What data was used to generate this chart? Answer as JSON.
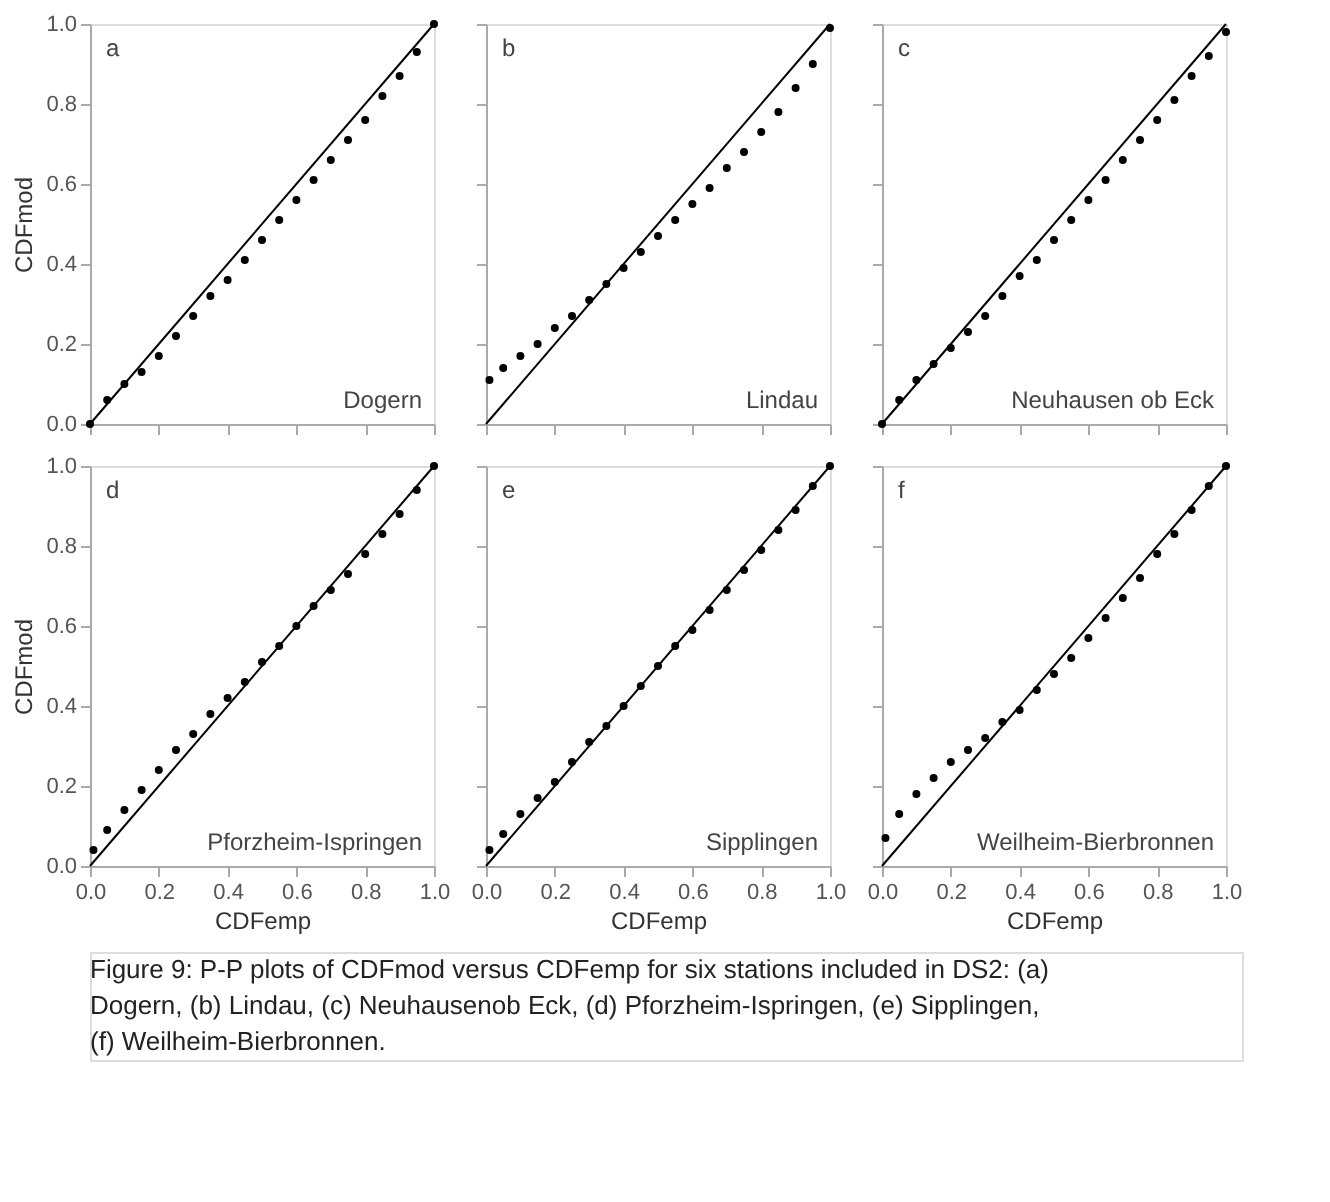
{
  "chart_data": [
    {
      "type": "scatter",
      "ylabel": "CDFmod",
      "tick_labels": "y",
      "annotations": [
        "a",
        "Dogern"
      ],
      "xlim": [
        0,
        1
      ],
      "ylim": [
        0,
        1
      ],
      "xticks": [
        0,
        0.2,
        0.4,
        0.6,
        0.8,
        1
      ],
      "yticks": [
        {
          "value": 0,
          "label": "0.0"
        },
        {
          "value": 0.2,
          "label": "0.2"
        },
        {
          "value": 0.4,
          "label": "0.4"
        },
        {
          "value": 0.6,
          "label": "0.6"
        },
        {
          "value": 0.8,
          "label": "0.8"
        },
        {
          "value": 1,
          "label": "1.0"
        }
      ],
      "grid": false,
      "series": [
        {
          "type": "scatter",
          "marker": "circle",
          "color": "#000000",
          "x": [
            0,
            0.05,
            0.1,
            0.15,
            0.2,
            0.25,
            0.3,
            0.35,
            0.4,
            0.45,
            0.5,
            0.55,
            0.6,
            0.65,
            0.7,
            0.75,
            0.8,
            0.85,
            0.9,
            0.95,
            1
          ],
          "values": [
            0,
            0.06,
            0.1,
            0.13,
            0.17,
            0.22,
            0.27,
            0.32,
            0.36,
            0.41,
            0.46,
            0.51,
            0.56,
            0.61,
            0.66,
            0.71,
            0.76,
            0.82,
            0.87,
            0.93,
            1
          ]
        },
        {
          "type": "line",
          "line_style": "solid",
          "color": "#000000",
          "x": [
            0,
            1
          ],
          "values": [
            0,
            1
          ]
        }
      ]
    },
    {
      "type": "scatter",
      "tick_labels": false,
      "annotations": [
        "b",
        "Lindau"
      ],
      "xlim": [
        0,
        1
      ],
      "ylim": [
        0,
        1
      ],
      "xticks": [
        0,
        0.2,
        0.4,
        0.6,
        0.8,
        1
      ],
      "yticks": [
        0,
        0.2,
        0.4,
        0.6,
        0.8,
        1
      ],
      "grid": false,
      "series": [
        {
          "type": "scatter",
          "marker": "circle",
          "color": "#000000",
          "x": [
            0.01,
            0.05,
            0.1,
            0.15,
            0.2,
            0.25,
            0.3,
            0.35,
            0.4,
            0.45,
            0.5,
            0.55,
            0.6,
            0.65,
            0.7,
            0.75,
            0.8,
            0.85,
            0.9,
            0.95,
            1
          ],
          "values": [
            0.11,
            0.14,
            0.17,
            0.2,
            0.24,
            0.27,
            0.31,
            0.35,
            0.39,
            0.43,
            0.47,
            0.51,
            0.55,
            0.59,
            0.64,
            0.68,
            0.73,
            0.78,
            0.84,
            0.9,
            0.99
          ]
        },
        {
          "type": "line",
          "line_style": "solid",
          "color": "#000000",
          "x": [
            0,
            1
          ],
          "values": [
            0,
            1
          ]
        }
      ]
    },
    {
      "type": "scatter",
      "tick_labels": false,
      "annotations": [
        "c",
        "Neuhausen ob Eck"
      ],
      "xlim": [
        0,
        1
      ],
      "ylim": [
        0,
        1
      ],
      "xticks": [
        0,
        0.2,
        0.4,
        0.6,
        0.8,
        1
      ],
      "yticks": [
        0,
        0.2,
        0.4,
        0.6,
        0.8,
        1
      ],
      "grid": false,
      "series": [
        {
          "type": "scatter",
          "marker": "circle",
          "color": "#000000",
          "x": [
            0,
            0.05,
            0.1,
            0.15,
            0.2,
            0.25,
            0.3,
            0.35,
            0.4,
            0.45,
            0.5,
            0.55,
            0.6,
            0.65,
            0.7,
            0.75,
            0.8,
            0.85,
            0.9,
            0.95,
            1
          ],
          "values": [
            0,
            0.06,
            0.11,
            0.15,
            0.19,
            0.23,
            0.27,
            0.32,
            0.37,
            0.41,
            0.46,
            0.51,
            0.56,
            0.61,
            0.66,
            0.71,
            0.76,
            0.81,
            0.87,
            0.92,
            0.98
          ]
        },
        {
          "type": "line",
          "line_style": "solid",
          "color": "#000000",
          "x": [
            0,
            1
          ],
          "values": [
            0,
            1
          ]
        }
      ]
    },
    {
      "type": "scatter",
      "xlabel": "CDFemp",
      "ylabel": "CDFmod",
      "annotations": [
        "d",
        "Pforzheim-Ispringen"
      ],
      "xlim": [
        0,
        1
      ],
      "ylim": [
        0,
        1
      ],
      "xticks": [
        {
          "value": 0,
          "label": "0.0"
        },
        {
          "value": 0.2,
          "label": "0.2"
        },
        {
          "value": 0.4,
          "label": "0.4"
        },
        {
          "value": 0.6,
          "label": "0.6"
        },
        {
          "value": 0.8,
          "label": "0.8"
        },
        {
          "value": 1,
          "label": "1.0"
        }
      ],
      "yticks": [
        {
          "value": 0,
          "label": "0.0"
        },
        {
          "value": 0.2,
          "label": "0.2"
        },
        {
          "value": 0.4,
          "label": "0.4"
        },
        {
          "value": 0.6,
          "label": "0.6"
        },
        {
          "value": 0.8,
          "label": "0.8"
        },
        {
          "value": 1,
          "label": "1.0"
        }
      ],
      "grid": false,
      "series": [
        {
          "type": "scatter",
          "marker": "circle",
          "color": "#000000",
          "x": [
            0.01,
            0.05,
            0.1,
            0.15,
            0.2,
            0.25,
            0.3,
            0.35,
            0.4,
            0.45,
            0.5,
            0.55,
            0.6,
            0.65,
            0.7,
            0.75,
            0.8,
            0.85,
            0.9,
            0.95,
            1
          ],
          "values": [
            0.04,
            0.09,
            0.14,
            0.19,
            0.24,
            0.29,
            0.33,
            0.38,
            0.42,
            0.46,
            0.51,
            0.55,
            0.6,
            0.65,
            0.69,
            0.73,
            0.78,
            0.83,
            0.88,
            0.94,
            1
          ]
        },
        {
          "type": "line",
          "line_style": "solid",
          "color": "#000000",
          "x": [
            0,
            1
          ],
          "values": [
            0,
            1
          ]
        }
      ]
    },
    {
      "type": "scatter",
      "xlabel": "CDFemp",
      "tick_labels": "x",
      "annotations": [
        "e",
        "Sipplingen"
      ],
      "xlim": [
        0,
        1
      ],
      "ylim": [
        0,
        1
      ],
      "xticks": [
        {
          "value": 0,
          "label": "0.0"
        },
        {
          "value": 0.2,
          "label": "0.2"
        },
        {
          "value": 0.4,
          "label": "0.4"
        },
        {
          "value": 0.6,
          "label": "0.6"
        },
        {
          "value": 0.8,
          "label": "0.8"
        },
        {
          "value": 1,
          "label": "1.0"
        }
      ],
      "yticks": [
        0,
        0.2,
        0.4,
        0.6,
        0.8,
        1
      ],
      "grid": false,
      "series": [
        {
          "type": "scatter",
          "marker": "circle",
          "color": "#000000",
          "x": [
            0.01,
            0.05,
            0.1,
            0.15,
            0.2,
            0.25,
            0.3,
            0.35,
            0.4,
            0.45,
            0.5,
            0.55,
            0.6,
            0.65,
            0.7,
            0.75,
            0.8,
            0.85,
            0.9,
            0.95,
            1
          ],
          "values": [
            0.04,
            0.08,
            0.13,
            0.17,
            0.21,
            0.26,
            0.31,
            0.35,
            0.4,
            0.45,
            0.5,
            0.55,
            0.59,
            0.64,
            0.69,
            0.74,
            0.79,
            0.84,
            0.89,
            0.95,
            1
          ]
        },
        {
          "type": "line",
          "line_style": "solid",
          "color": "#000000",
          "x": [
            0,
            1
          ],
          "values": [
            0,
            1
          ]
        }
      ]
    },
    {
      "type": "scatter",
      "xlabel": "CDFemp",
      "tick_labels": "x",
      "annotations": [
        "f",
        "Weilheim-Bierbronnen"
      ],
      "xlim": [
        0,
        1
      ],
      "ylim": [
        0,
        1
      ],
      "xticks": [
        {
          "value": 0,
          "label": "0.0"
        },
        {
          "value": 0.2,
          "label": "0.2"
        },
        {
          "value": 0.4,
          "label": "0.4"
        },
        {
          "value": 0.6,
          "label": "0.6"
        },
        {
          "value": 0.8,
          "label": "0.8"
        },
        {
          "value": 1,
          "label": "1.0"
        }
      ],
      "yticks": [
        0,
        0.2,
        0.4,
        0.6,
        0.8,
        1
      ],
      "grid": false,
      "series": [
        {
          "type": "scatter",
          "marker": "circle",
          "color": "#000000",
          "x": [
            0.01,
            0.05,
            0.1,
            0.15,
            0.2,
            0.25,
            0.3,
            0.35,
            0.4,
            0.45,
            0.5,
            0.55,
            0.6,
            0.65,
            0.7,
            0.75,
            0.8,
            0.85,
            0.9,
            0.95,
            1
          ],
          "values": [
            0.07,
            0.13,
            0.18,
            0.22,
            0.26,
            0.29,
            0.32,
            0.36,
            0.39,
            0.44,
            0.48,
            0.52,
            0.57,
            0.62,
            0.67,
            0.72,
            0.78,
            0.83,
            0.89,
            0.95,
            1
          ]
        },
        {
          "type": "line",
          "line_style": "solid",
          "color": "#000000",
          "x": [
            0,
            1
          ],
          "values": [
            0,
            1
          ]
        }
      ]
    },
    {
      "type": "other",
      "annotations": [
        "Figure 9: P-P plots of CDFmod versus CDFemp for six stations included in DS2: (a) Dogern, (b) Lindau, (c) Neuhausenob Eck, (d) Pforzheim-Ispringen, (e) Sipplingen, (f) Weilheim-Bierbronnen."
      ]
    }
  ]
}
